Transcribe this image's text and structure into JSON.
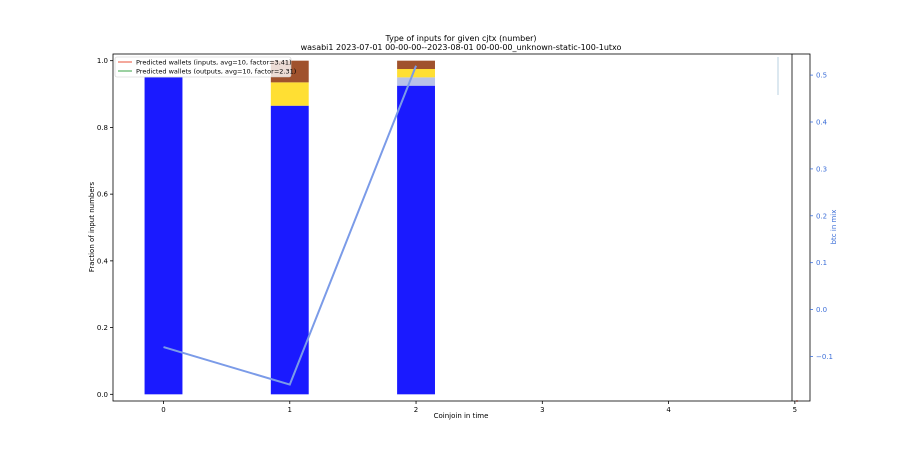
{
  "chart_data": {
    "type": "bar",
    "title": "Type of inputs for given cjtx (number)",
    "subtitle": "wasabi1 2023-07-01 00-00-00--2023-08-01 00-00-00_unknown-static-100-1utxo",
    "xlabel": "Coinjoin in time",
    "ylabel": "Fraction of input numbers",
    "y2label": "btc in mix",
    "x_ticks": [
      "0",
      "1",
      "2",
      "3",
      "4",
      "5"
    ],
    "y_ticks": [
      "0.0",
      "0.2",
      "0.4",
      "0.6",
      "0.8",
      "1.0"
    ],
    "y2_ticks": [
      "−0.1",
      "0.0",
      "0.1",
      "0.2",
      "0.3",
      "0.4",
      "0.5"
    ],
    "xlim": [
      -0.4,
      5.12
    ],
    "ylim": [
      -0.02,
      1.02
    ],
    "y2lim": [
      -0.195,
      0.545
    ],
    "stacked_series": [
      {
        "color": "#1a1aff",
        "values": [
          0.95,
          0.865,
          0.925
        ]
      },
      {
        "color": "#b8c2e8",
        "values": [
          0.0,
          0.0,
          0.025
        ]
      },
      {
        "color": "#ffdf33",
        "values": [
          0.0,
          0.07,
          0.025
        ]
      },
      {
        "color": "#a0522d",
        "values": [
          0.0,
          0.065,
          0.025
        ]
      }
    ],
    "line_series": {
      "color": "#7b9be8",
      "x": [
        0,
        1,
        2
      ],
      "y2": [
        -0.08,
        -0.16,
        0.52
      ]
    },
    "legend": {
      "position": "top-left",
      "entries": [
        {
          "label": "Predicted wallets (inputs, avg=10, factor=3.41)",
          "color": "#e8513a"
        },
        {
          "label": "Predicted wallets (outputs, avg=10, factor=2.31)",
          "color": "#3aa345"
        }
      ]
    },
    "grid": false
  }
}
